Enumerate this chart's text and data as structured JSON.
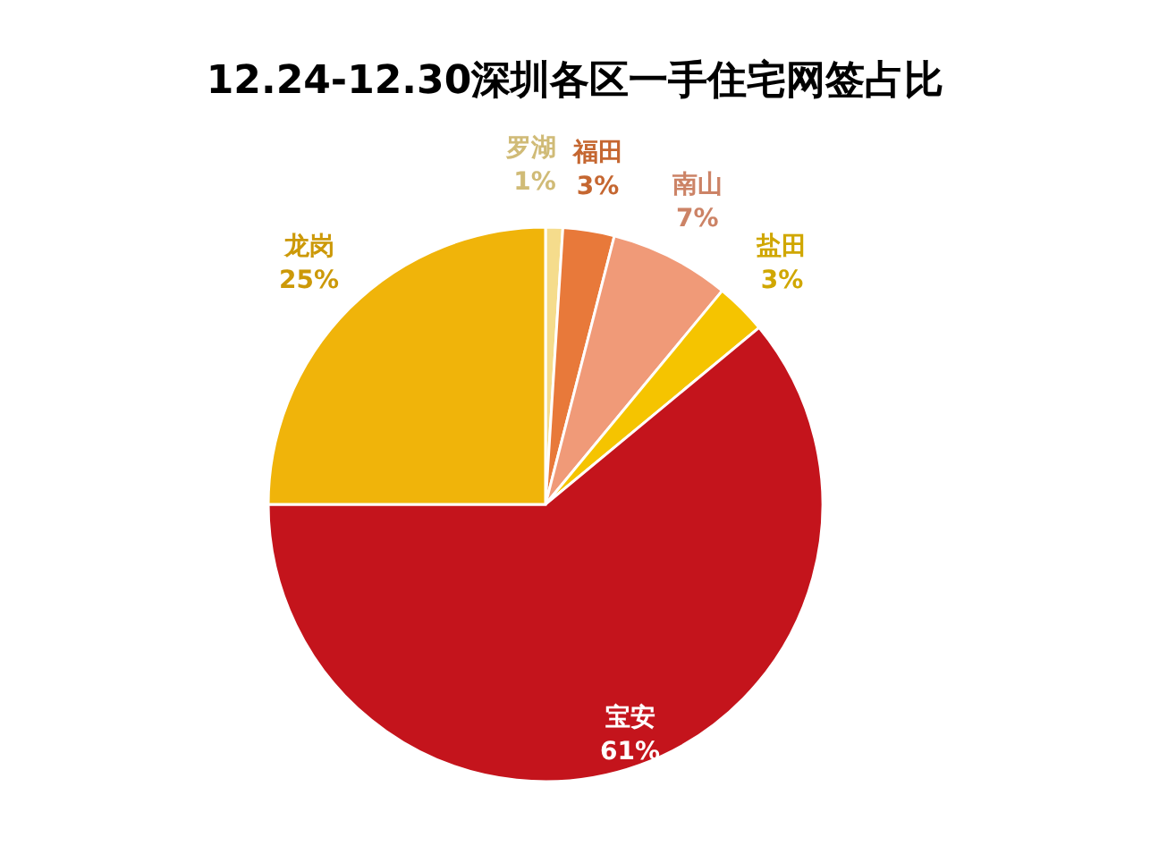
{
  "chart_data": {
    "type": "pie",
    "title": "12.24-12.30深圳各区一手住宅网签占比",
    "categories": [
      "罗湖",
      "福田",
      "南山",
      "盐田",
      "宝安",
      "龙岗"
    ],
    "values": [
      1,
      3,
      7,
      3,
      61,
      25
    ],
    "colors": [
      "#f5dc8c",
      "#e8793a",
      "#f09a78",
      "#f5c400",
      "#c4141c",
      "#f0b40a"
    ],
    "value_labels": [
      "1%",
      "3%",
      "7%",
      "3%",
      "61%",
      "25%"
    ]
  }
}
